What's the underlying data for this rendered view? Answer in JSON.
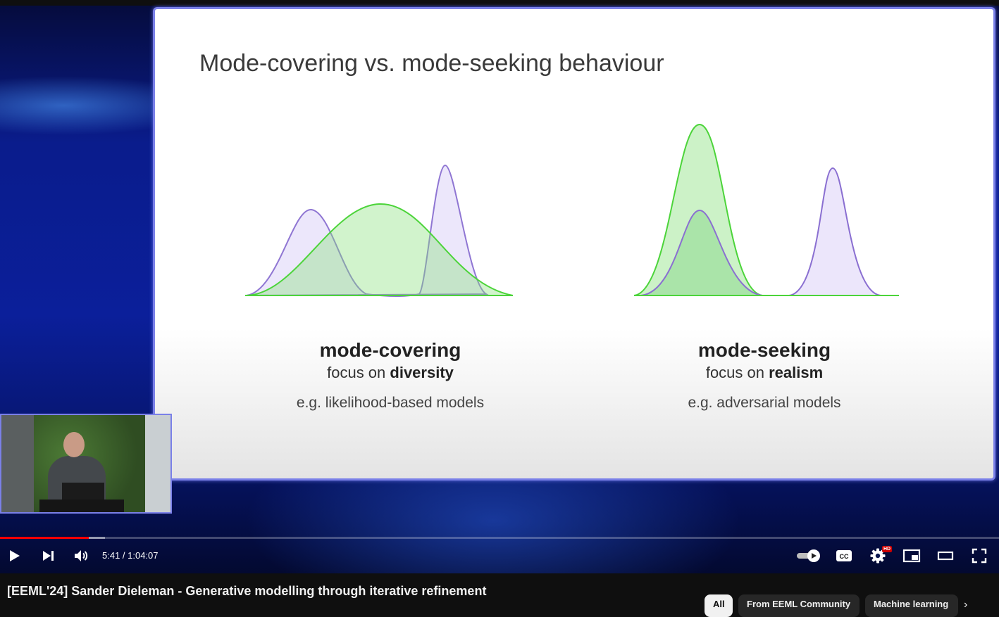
{
  "slide": {
    "title": "Mode-covering vs. mode-seeking behaviour",
    "left": {
      "heading": "mode-covering",
      "focus_prefix": "focus on ",
      "focus_bold": "diversity",
      "example": "e.g. likelihood-based models"
    },
    "right": {
      "heading": "mode-seeking",
      "focus_prefix": "focus on ",
      "focus_bold": "realism",
      "example": "e.g. adversarial models"
    },
    "colors": {
      "data_curve": "#8a6fd1",
      "model_curve": "#4cd43a",
      "border": "#7a80e8"
    }
  },
  "player": {
    "current_time": "5:41",
    "duration": "1:04:07",
    "time_display": "5:41 / 1:04:07",
    "progress_fraction": 0.0886,
    "buffer_fraction": 0.105,
    "hd_badge": "HD",
    "icons": [
      "play-icon",
      "next-icon",
      "volume-icon",
      "autoplay-toggle-icon",
      "captions-icon",
      "settings-icon",
      "miniplayer-icon",
      "theater-icon",
      "fullscreen-icon"
    ]
  },
  "video": {
    "title": "[EEML'24] Sander Dieleman - Generative modelling through iterative refinement"
  },
  "chips": [
    {
      "label": "All",
      "active": true
    },
    {
      "label": "From EEML Community",
      "active": false
    },
    {
      "label": "Machine learning",
      "active": false
    }
  ]
}
